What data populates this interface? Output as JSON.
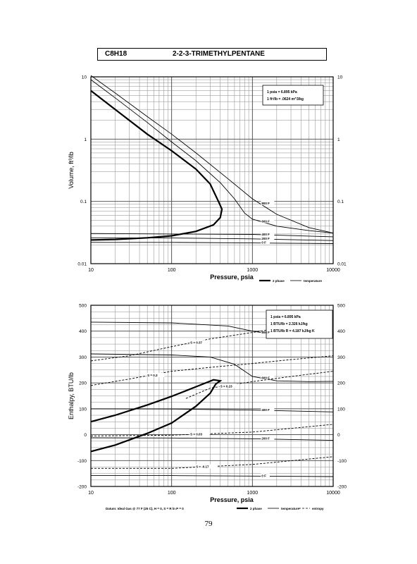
{
  "header": {
    "formula": "C8H18",
    "name": "2-2-3-TRIMETHYLPENTANE"
  },
  "page_number": "79",
  "chart_data": [
    {
      "type": "line",
      "xlabel": "Pressure,  psia",
      "ylabel": "Volume,  ft^3/lb",
      "xscale": "log",
      "yscale": "log",
      "xlim": [
        10,
        10000
      ],
      "ylim": [
        0.01,
        10
      ],
      "xticks": [
        "10",
        "100",
        "1000",
        "10000"
      ],
      "yticks": [
        "0.01",
        "0.1",
        "1",
        "10"
      ],
      "grid": true,
      "conversion_box": [
        "1 psia  =  6.895 kPa",
        "1 ft^3/lb  =  .0624 m^3/kg"
      ],
      "legend": [
        "2 phase",
        "temperature"
      ],
      "series": [
        {
          "name": "2 phase",
          "style": "thick",
          "points": [
            [
              10,
              6.0
            ],
            [
              20,
              3.0
            ],
            [
              50,
              1.2
            ],
            [
              100,
              0.65
            ],
            [
              200,
              0.33
            ],
            [
              300,
              0.19
            ],
            [
              380,
              0.1
            ],
            [
              420,
              0.075
            ],
            [
              400,
              0.055
            ],
            [
              330,
              0.042
            ],
            [
              200,
              0.033
            ],
            [
              100,
              0.028
            ],
            [
              50,
              0.026
            ],
            [
              20,
              0.0245
            ],
            [
              10,
              0.024
            ]
          ]
        },
        {
          "name": "800 F",
          "label": "800 F",
          "style": "thin",
          "points": [
            [
              10,
              10.5
            ],
            [
              20,
              5.5
            ],
            [
              50,
              2.3
            ],
            [
              100,
              1.2
            ],
            [
              200,
              0.6
            ],
            [
              500,
              0.23
            ],
            [
              1000,
              0.11
            ],
            [
              2000,
              0.062
            ],
            [
              5000,
              0.038
            ],
            [
              10000,
              0.031
            ]
          ]
        },
        {
          "name": "600 F",
          "label": "600 F",
          "style": "thin",
          "points": [
            [
              10,
              9.0
            ],
            [
              20,
              4.6
            ],
            [
              50,
              1.85
            ],
            [
              100,
              0.9
            ],
            [
              200,
              0.45
            ],
            [
              400,
              0.2
            ],
            [
              600,
              0.11
            ],
            [
              800,
              0.065
            ],
            [
              1000,
              0.052
            ],
            [
              2000,
              0.04
            ],
            [
              5000,
              0.034
            ],
            [
              10000,
              0.031
            ]
          ]
        },
        {
          "name": "400 F",
          "label": "400 F",
          "style": "thin",
          "points": [
            [
              10,
              0.0305
            ],
            [
              100,
              0.03
            ],
            [
              1000,
              0.0295
            ],
            [
              10000,
              0.027
            ]
          ]
        },
        {
          "name": "200 F",
          "label": "200 F",
          "style": "thin",
          "points": [
            [
              10,
              0.026
            ],
            [
              100,
              0.0258
            ],
            [
              1000,
              0.025
            ],
            [
              10000,
              0.0235
            ]
          ]
        },
        {
          "name": "0 F",
          "label": "0 F",
          "style": "thin",
          "points": [
            [
              10,
              0.022
            ],
            [
              100,
              0.022
            ],
            [
              1000,
              0.0215
            ],
            [
              10000,
              0.021
            ]
          ]
        }
      ]
    },
    {
      "type": "line",
      "xlabel": "Pressure,  psia",
      "ylabel": "Enthalpy,  BTU/lb",
      "xscale": "log",
      "xlim": [
        10,
        10000
      ],
      "ylim": [
        -200,
        500
      ],
      "xticks": [
        "10",
        "100",
        "1000",
        "10000"
      ],
      "yticks": [
        "-200",
        "-100",
        "0",
        "100",
        "200",
        "300",
        "400",
        "500"
      ],
      "grid": true,
      "conversion_box": [
        "1 psia  =  6.895 kPa",
        "1 BTU/lb  =  2.326 kJ/kg",
        "1 BTU/lb R  =  4.187 kJ/kg K"
      ],
      "legend": [
        "2 phase",
        "temperature",
        "entropy"
      ],
      "footnote": "Datum: Ideal Gas @ 77 F (25 C),  H = 0,  S = R ln P = 0",
      "series": [
        {
          "name": "2 phase",
          "style": "thick",
          "points": [
            [
              10,
              -65
            ],
            [
              20,
              -40
            ],
            [
              50,
              5
            ],
            [
              100,
              45
            ],
            [
              200,
              110
            ],
            [
              300,
              160
            ],
            [
              350,
              195
            ],
            [
              400,
              208
            ],
            [
              330,
              212
            ],
            [
              200,
              185
            ],
            [
              100,
              148
            ],
            [
              50,
              115
            ],
            [
              20,
              75
            ],
            [
              10,
              50
            ]
          ]
        },
        {
          "name": "800 F",
          "label": "800 F",
          "style": "thin",
          "points": [
            [
              10,
              435
            ],
            [
              100,
              432
            ],
            [
              500,
              420
            ],
            [
              1000,
              400
            ],
            [
              2000,
              385
            ],
            [
              5000,
              385
            ],
            [
              10000,
              388
            ]
          ]
        },
        {
          "name": "600 F",
          "label": "600 F",
          "style": "thin",
          "points": [
            [
              10,
              312
            ],
            [
              100,
              308
            ],
            [
              300,
              300
            ],
            [
              600,
              272
            ],
            [
              1000,
              225
            ],
            [
              2000,
              208
            ],
            [
              5000,
              205
            ],
            [
              10000,
              206
            ]
          ]
        },
        {
          "name": "400 F",
          "label": "400 F",
          "style": "thin",
          "points": [
            [
              10,
              100
            ],
            [
              100,
              99
            ],
            [
              1000,
              95
            ],
            [
              10000,
              88
            ]
          ]
        },
        {
          "name": "200 F",
          "label": "200 F",
          "style": "thin",
          "points": [
            [
              10,
              -12
            ],
            [
              100,
              -13
            ],
            [
              1000,
              -16
            ],
            [
              10000,
              -22
            ]
          ]
        },
        {
          "name": "0 F",
          "label": "0 F",
          "style": "thin",
          "points": [
            [
              10,
              -158
            ],
            [
              100,
              -158
            ],
            [
              1000,
              -160
            ],
            [
              10000,
              -162
            ]
          ]
        },
        {
          "name": "S = 0.37",
          "label": "S = 0.37",
          "style": "dashed",
          "points": [
            [
              10,
              285
            ],
            [
              30,
              305
            ],
            [
              100,
              340
            ],
            [
              300,
              370
            ],
            [
              1000,
              395
            ],
            [
              3000,
              420
            ],
            [
              10000,
              440
            ]
          ]
        },
        {
          "name": "S = 0.3",
          "label": "S = 0.3",
          "style": "dashed",
          "points": [
            [
              10,
              190
            ],
            [
              30,
              215
            ],
            [
              100,
              245
            ],
            [
              300,
              260
            ],
            [
              1000,
              275
            ],
            [
              3000,
              290
            ],
            [
              10000,
              305
            ]
          ]
        },
        {
          "name": "S = 0.23",
          "label": "S = 0.23",
          "style": "dashed",
          "points": [
            [
              150,
              140
            ],
            [
              300,
              180
            ],
            [
              1000,
              205
            ],
            [
              3000,
              225
            ],
            [
              10000,
              245
            ]
          ]
        },
        {
          "name": "S = 0.03",
          "label": "S = 0.03",
          "style": "dashed",
          "points": [
            [
              10,
              -5
            ],
            [
              100,
              -2
            ],
            [
              1000,
              10
            ],
            [
              10000,
              40
            ]
          ]
        },
        {
          "name": "S = -0.17",
          "label": "S = -0.17",
          "style": "dashed",
          "points": [
            [
              10,
              -130
            ],
            [
              100,
              -130
            ],
            [
              1000,
              -115
            ],
            [
              10000,
              -85
            ]
          ]
        }
      ]
    }
  ]
}
